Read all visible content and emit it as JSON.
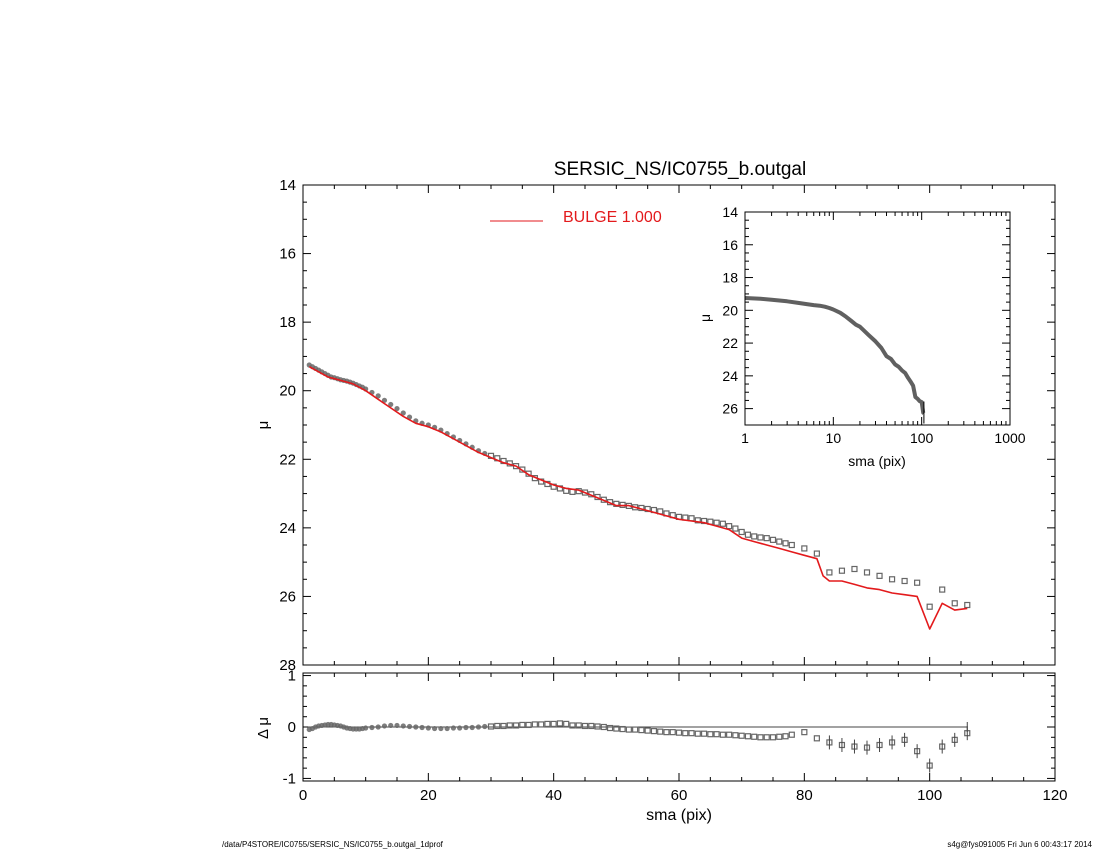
{
  "footer": {
    "left": "/data/P4STORE/IC0755/SERSIC_NS/IC0755_b.outgal_1dprof",
    "right": "s4g@fys091005  Fri Jun  6 00:43:17 2014"
  },
  "colors": {
    "model": "#e31a1c",
    "points": "#666666",
    "axes": "#000000"
  },
  "chart_data": [
    {
      "id": "main",
      "type": "line",
      "title": "SERSIC_NS/IC0755_b.outgal",
      "xlabel": "",
      "ylabel": "μ",
      "xlim": [
        0,
        120
      ],
      "ylim": [
        28,
        14
      ],
      "y_inverted": true,
      "xticks": [
        0,
        20,
        40,
        60,
        80,
        100,
        120
      ],
      "yticks": [
        14,
        16,
        18,
        20,
        22,
        24,
        26,
        28
      ],
      "ytick_labels": [
        "14",
        "16",
        "18",
        "20",
        "22",
        "24",
        "26",
        "28"
      ],
      "legend": {
        "label": "BULGE  1.000",
        "placement": "top-center"
      },
      "series": [
        {
          "name": "BULGE  1.000",
          "kind": "line",
          "color": "#e31a1c",
          "x": [
            1,
            2,
            3,
            4,
            5,
            6,
            7,
            8,
            9,
            10,
            12,
            14,
            16,
            18,
            20,
            22,
            24,
            26,
            28,
            30,
            32,
            34,
            36,
            38,
            40,
            42,
            44,
            46,
            48,
            50,
            52,
            54,
            56,
            58,
            60,
            62,
            64,
            66,
            68,
            70,
            72,
            74,
            76,
            78,
            80,
            82,
            83,
            84,
            86,
            88,
            90,
            92,
            94,
            96,
            98,
            100,
            102,
            104,
            106
          ],
          "y": [
            19.3,
            19.4,
            19.5,
            19.6,
            19.65,
            19.7,
            19.75,
            19.8,
            19.9,
            20.0,
            20.25,
            20.5,
            20.75,
            20.95,
            21.05,
            21.2,
            21.4,
            21.6,
            21.8,
            21.95,
            22.1,
            22.2,
            22.45,
            22.6,
            22.75,
            22.85,
            22.9,
            23.05,
            23.2,
            23.35,
            23.35,
            23.45,
            23.55,
            23.65,
            23.75,
            23.8,
            23.85,
            23.95,
            24.05,
            24.3,
            24.4,
            24.5,
            24.6,
            24.7,
            24.8,
            24.9,
            25.4,
            25.55,
            25.55,
            25.65,
            25.75,
            25.8,
            25.9,
            25.95,
            26.0,
            26.95,
            26.2,
            26.4,
            26.35
          ]
        },
        {
          "name": "",
          "kind": "scatter",
          "color": "#666666",
          "x": [
            1,
            1.5,
            2,
            2.5,
            3,
            3.5,
            4,
            4.5,
            5,
            5.5,
            6,
            6.5,
            7,
            7.5,
            8,
            8.5,
            9,
            9.5,
            10,
            11,
            12,
            13,
            14,
            15,
            16,
            17,
            18,
            19,
            20,
            21,
            22,
            23,
            24,
            25,
            26,
            27,
            28,
            29,
            30,
            31,
            32,
            33,
            34,
            35,
            36,
            37,
            38,
            39,
            40,
            41,
            42,
            43,
            44,
            45,
            46,
            47,
            48,
            49,
            50,
            51,
            52,
            53,
            54,
            55,
            56,
            57,
            58,
            59,
            60,
            61,
            62,
            63,
            64,
            65,
            66,
            67,
            68,
            69,
            70,
            71,
            72,
            73,
            74,
            75,
            76,
            77,
            78,
            80,
            82,
            84,
            86,
            88,
            90,
            92,
            94,
            96,
            98,
            100,
            102,
            104,
            106
          ],
          "y": [
            19.25,
            19.3,
            19.35,
            19.4,
            19.45,
            19.5,
            19.55,
            19.6,
            19.62,
            19.65,
            19.68,
            19.7,
            19.72,
            19.75,
            19.78,
            19.82,
            19.86,
            19.9,
            19.95,
            20.05,
            20.15,
            20.28,
            20.4,
            20.52,
            20.65,
            20.77,
            20.88,
            20.95,
            21.0,
            21.07,
            21.15,
            21.25,
            21.35,
            21.45,
            21.55,
            21.65,
            21.75,
            21.83,
            21.9,
            21.97,
            22.05,
            22.12,
            22.2,
            22.3,
            22.42,
            22.55,
            22.65,
            22.72,
            22.8,
            22.85,
            22.92,
            22.95,
            22.93,
            22.97,
            23.02,
            23.1,
            23.18,
            23.25,
            23.3,
            23.33,
            23.36,
            23.4,
            23.42,
            23.45,
            23.48,
            23.52,
            23.58,
            23.63,
            23.68,
            23.7,
            23.72,
            23.78,
            23.8,
            23.82,
            23.85,
            23.88,
            23.95,
            24.02,
            24.12,
            24.2,
            24.25,
            24.28,
            24.3,
            24.35,
            24.4,
            24.45,
            24.5,
            24.6,
            24.75,
            25.3,
            25.25,
            25.2,
            25.3,
            25.4,
            25.5,
            25.55,
            25.6,
            26.3,
            25.8,
            26.2,
            26.25
          ]
        }
      ]
    },
    {
      "id": "inset",
      "type": "line",
      "title": "",
      "xlabel": "sma (pix)",
      "ylabel": "μ",
      "x_scale": "log",
      "xlim": [
        1,
        1000
      ],
      "ylim": [
        27,
        14
      ],
      "y_inverted": true,
      "xticks": [
        1,
        10,
        100,
        1000
      ],
      "xtick_labels": [
        "1",
        "10",
        "100",
        "1000"
      ],
      "yticks": [
        14,
        16,
        18,
        20,
        22,
        24,
        26
      ],
      "ytick_labels": [
        "14",
        "16",
        "18",
        "20",
        "22",
        "24",
        "26"
      ],
      "series": [
        {
          "name": "",
          "kind": "line",
          "color": "#444444",
          "x": [
            1,
            1.5,
            2,
            3,
            4,
            5,
            6,
            7,
            8,
            9,
            10,
            12,
            14,
            16,
            18,
            20,
            25,
            30,
            35,
            40,
            45,
            50,
            55,
            60,
            65,
            70,
            75,
            80,
            85,
            90,
            95,
            100,
            104,
            106
          ],
          "y": [
            19.25,
            19.3,
            19.35,
            19.45,
            19.55,
            19.62,
            19.68,
            19.72,
            19.78,
            19.86,
            19.95,
            20.15,
            20.4,
            20.65,
            20.88,
            21.0,
            21.5,
            21.9,
            22.3,
            22.8,
            22.97,
            23.3,
            23.45,
            23.68,
            23.82,
            24.12,
            24.35,
            24.6,
            25.3,
            25.4,
            25.55,
            25.6,
            26.25,
            26.3
          ]
        }
      ]
    },
    {
      "id": "residual",
      "type": "scatter",
      "title": "",
      "xlabel": "sma (pix)",
      "ylabel": "Δ μ",
      "xlim": [
        0,
        120
      ],
      "ylim": [
        -1.05,
        1.05
      ],
      "xticks": [
        0,
        20,
        40,
        60,
        80,
        100,
        120
      ],
      "xtick_labels": [
        "0",
        "20",
        "40",
        "60",
        "80",
        "100",
        "120"
      ],
      "yticks": [
        -1,
        0,
        1
      ],
      "ytick_labels": [
        "-1",
        "0",
        "1"
      ],
      "reference_line": {
        "y": 0,
        "x_end": 106
      },
      "series": [
        {
          "name": "",
          "kind": "scatter",
          "color": "#666666",
          "x": [
            1,
            1.5,
            2,
            2.5,
            3,
            3.5,
            4,
            4.5,
            5,
            5.5,
            6,
            6.5,
            7,
            7.5,
            8,
            8.5,
            9,
            9.5,
            10,
            11,
            12,
            13,
            14,
            15,
            16,
            17,
            18,
            19,
            20,
            21,
            22,
            23,
            24,
            25,
            26,
            27,
            28,
            29,
            30,
            31,
            32,
            33,
            34,
            35,
            36,
            37,
            38,
            39,
            40,
            41,
            42,
            43,
            44,
            45,
            46,
            47,
            48,
            49,
            50,
            51,
            52,
            53,
            54,
            55,
            56,
            57,
            58,
            59,
            60,
            61,
            62,
            63,
            64,
            65,
            66,
            67,
            68,
            69,
            70,
            71,
            72,
            73,
            74,
            75,
            76,
            77,
            78,
            80,
            82,
            84,
            86,
            88,
            90,
            92,
            94,
            96,
            98,
            100,
            102,
            104,
            106
          ],
          "y": [
            -0.05,
            -0.03,
            0.0,
            0.02,
            0.03,
            0.04,
            0.05,
            0.05,
            0.04,
            0.03,
            0.02,
            0.0,
            -0.02,
            -0.03,
            -0.04,
            -0.04,
            -0.04,
            -0.03,
            -0.02,
            -0.01,
            0.0,
            0.02,
            0.03,
            0.03,
            0.02,
            0.01,
            0.0,
            -0.01,
            -0.02,
            -0.03,
            -0.03,
            -0.03,
            -0.02,
            -0.02,
            -0.01,
            -0.01,
            0.0,
            0.01,
            0.01,
            0.02,
            0.02,
            0.03,
            0.03,
            0.04,
            0.04,
            0.05,
            0.05,
            0.06,
            0.06,
            0.07,
            0.06,
            0.03,
            0.03,
            0.02,
            0.02,
            0.01,
            0.0,
            -0.02,
            -0.03,
            -0.04,
            -0.05,
            -0.05,
            -0.06,
            -0.07,
            -0.08,
            -0.09,
            -0.1,
            -0.1,
            -0.11,
            -0.12,
            -0.12,
            -0.13,
            -0.13,
            -0.14,
            -0.14,
            -0.15,
            -0.15,
            -0.16,
            -0.17,
            -0.18,
            -0.19,
            -0.2,
            -0.2,
            -0.2,
            -0.19,
            -0.18,
            -0.15,
            -0.1,
            -0.22,
            -0.3,
            -0.35,
            -0.38,
            -0.4,
            -0.35,
            -0.3,
            -0.25,
            -0.47,
            -0.75,
            -0.38,
            -0.25,
            -0.12
          ]
        }
      ]
    }
  ]
}
